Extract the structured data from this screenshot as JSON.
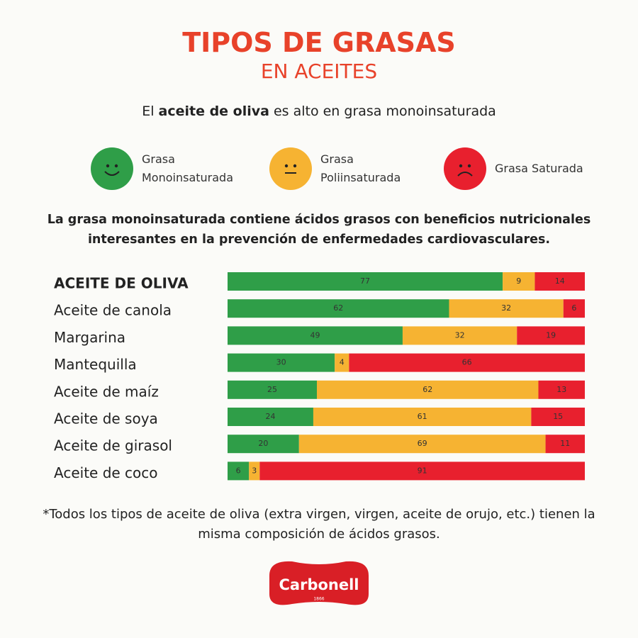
{
  "header": {
    "title": "TIPOS DE GRASAS",
    "subtitle": "EN ACEITES",
    "tagline": {
      "prefix": "El",
      "bold": "aceite de oliva",
      "suffix": "es alto en grasa monoinsaturada"
    }
  },
  "note": "La grasa monoinsaturada contiene ácidos grasos con beneficios nutricionales interesantes en la prevención de enfermedades cardiovasculares.",
  "chart_data": {
    "type": "stacked-bar",
    "orientation": "horizontal",
    "xlim": [
      0,
      100
    ],
    "categories": [
      "ACEITE DE OLIVA",
      "Aceite de canola",
      "Margarina",
      "Mantequilla",
      "Aceite de maíz",
      "Aceite de soya",
      "Aceite de girasol",
      "Aceite de coco"
    ],
    "series": [
      {
        "name": "Grasa Monoinsaturada",
        "color": "#2f9e48",
        "values": [
          77,
          62,
          49,
          30,
          25,
          24,
          20,
          6
        ]
      },
      {
        "name": "Grasa Poliinsaturada",
        "color": "#f6b332",
        "values": [
          9,
          32,
          32,
          4,
          62,
          61,
          69,
          3
        ]
      },
      {
        "name": "Grasa Saturada",
        "color": "#e8202e",
        "values": [
          14,
          6,
          19,
          66,
          13,
          15,
          11,
          91
        ]
      }
    ]
  },
  "footnote": "*Todos los tipos de aceite de oliva (extra virgen, virgen, aceite de orujo, etc.) tienen la misma composición de ácidos grasos.",
  "logo": {
    "name": "Carbonell",
    "year": "1866"
  }
}
